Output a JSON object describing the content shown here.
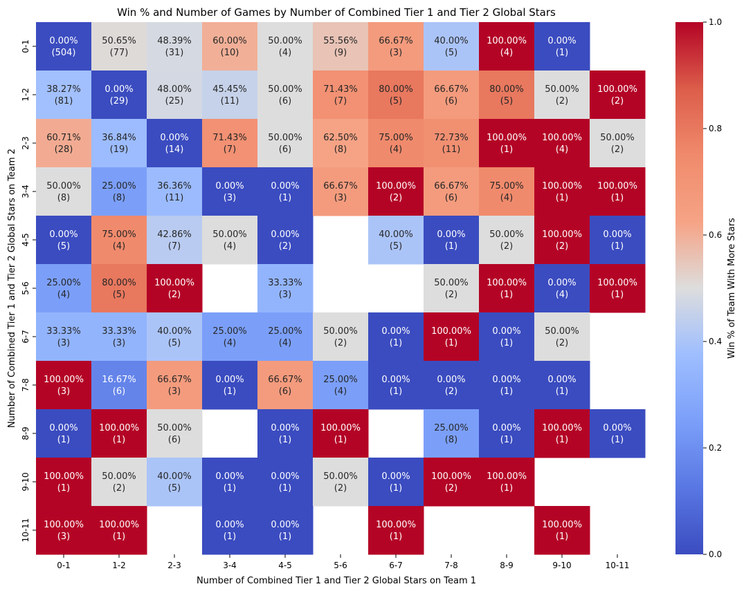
{
  "chart_data": {
    "type": "heatmap",
    "title": "Win % and Number of Games by Number of Combined Tier 1 and Tier 2 Global Stars",
    "xlabel": "Number of Combined Tier 1 and Tier 2 Global Stars on Team 1",
    "ylabel": "Number of Combined Tier 1 and Tier 2 Global Stars on Team 2",
    "x_categories": [
      "0-1",
      "1-2",
      "2-3",
      "3-4",
      "4-5",
      "5-6",
      "6-7",
      "7-8",
      "8-9",
      "9-10",
      "10-11"
    ],
    "y_categories": [
      "0-1",
      "1-2",
      "2-3",
      "3-4",
      "4-5",
      "5-6",
      "6-7",
      "7-8",
      "8-9",
      "9-10",
      "10-11"
    ],
    "win_pct": [
      [
        0.0,
        50.65,
        48.39,
        60.0,
        50.0,
        55.56,
        66.67,
        40.0,
        100.0,
        0.0,
        null
      ],
      [
        38.27,
        0.0,
        48.0,
        45.45,
        50.0,
        71.43,
        80.0,
        66.67,
        80.0,
        50.0,
        100.0
      ],
      [
        60.71,
        36.84,
        0.0,
        71.43,
        50.0,
        62.5,
        75.0,
        72.73,
        100.0,
        100.0,
        50.0
      ],
      [
        50.0,
        25.0,
        36.36,
        0.0,
        0.0,
        66.67,
        100.0,
        66.67,
        75.0,
        100.0,
        100.0
      ],
      [
        0.0,
        75.0,
        42.86,
        50.0,
        0.0,
        null,
        40.0,
        0.0,
        50.0,
        100.0,
        0.0
      ],
      [
        25.0,
        80.0,
        100.0,
        null,
        33.33,
        null,
        null,
        50.0,
        100.0,
        0.0,
        100.0
      ],
      [
        33.33,
        33.33,
        40.0,
        25.0,
        25.0,
        50.0,
        0.0,
        100.0,
        0.0,
        50.0,
        null
      ],
      [
        100.0,
        16.67,
        66.67,
        0.0,
        66.67,
        25.0,
        0.0,
        0.0,
        0.0,
        0.0,
        null
      ],
      [
        0.0,
        100.0,
        50.0,
        null,
        0.0,
        100.0,
        null,
        25.0,
        0.0,
        100.0,
        0.0
      ],
      [
        100.0,
        50.0,
        40.0,
        0.0,
        0.0,
        50.0,
        0.0,
        100.0,
        100.0,
        null,
        null
      ],
      [
        100.0,
        100.0,
        null,
        0.0,
        0.0,
        null,
        100.0,
        null,
        null,
        100.0,
        null
      ]
    ],
    "games": [
      [
        504,
        77,
        31,
        10,
        4,
        9,
        3,
        5,
        4,
        1,
        null
      ],
      [
        81,
        29,
        25,
        11,
        6,
        7,
        5,
        6,
        5,
        2,
        2
      ],
      [
        28,
        19,
        14,
        7,
        6,
        8,
        4,
        11,
        1,
        4,
        2
      ],
      [
        8,
        8,
        11,
        3,
        1,
        3,
        2,
        6,
        4,
        1,
        1
      ],
      [
        5,
        4,
        7,
        4,
        2,
        null,
        5,
        1,
        2,
        2,
        1
      ],
      [
        4,
        5,
        2,
        null,
        3,
        null,
        null,
        2,
        1,
        4,
        1
      ],
      [
        3,
        3,
        5,
        4,
        4,
        2,
        1,
        1,
        1,
        2,
        null
      ],
      [
        3,
        6,
        3,
        1,
        6,
        4,
        1,
        2,
        1,
        1,
        null
      ],
      [
        1,
        1,
        6,
        null,
        1,
        1,
        null,
        8,
        1,
        1,
        1
      ],
      [
        1,
        2,
        5,
        1,
        1,
        2,
        1,
        2,
        1,
        null,
        null
      ],
      [
        3,
        1,
        null,
        1,
        1,
        null,
        1,
        null,
        null,
        1,
        null
      ]
    ],
    "colorbar": {
      "label": "Win % of Team With More Stars",
      "range": [
        0.0,
        1.0
      ],
      "ticks": [
        "0.0",
        "0.2",
        "0.4",
        "0.6",
        "0.8",
        "1.0"
      ],
      "colormap": "coolwarm"
    }
  }
}
